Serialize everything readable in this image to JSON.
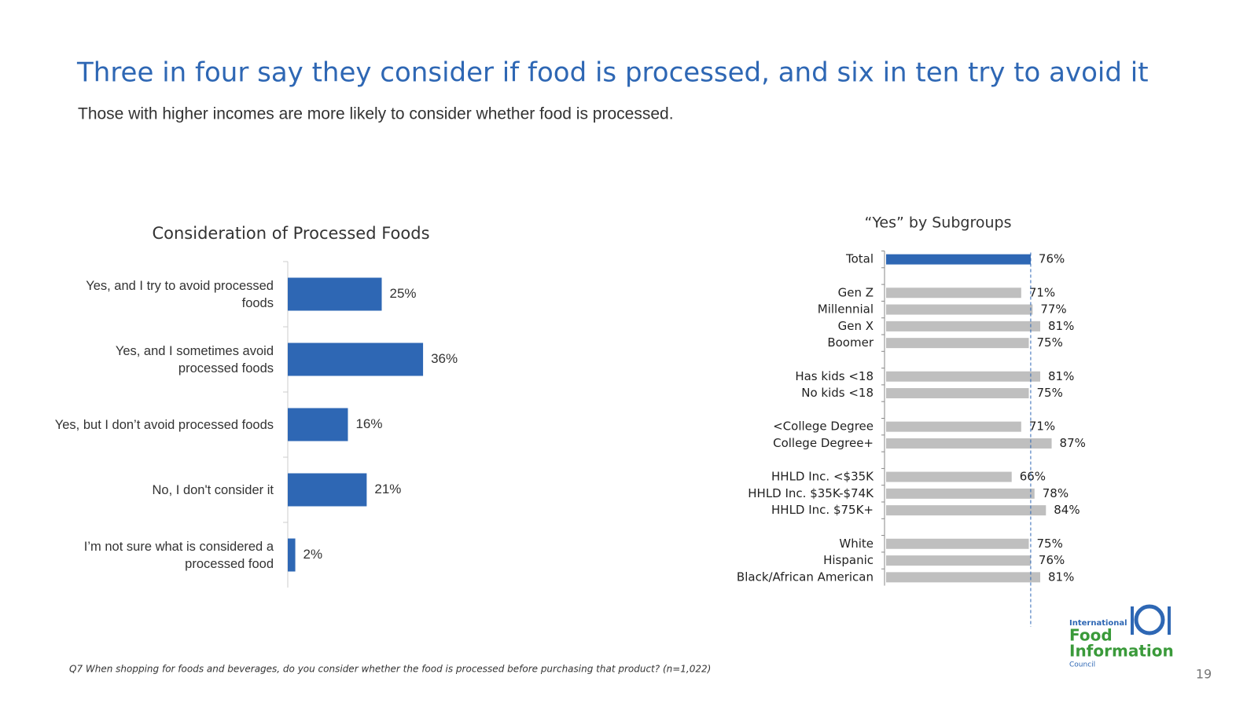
{
  "header": {
    "title": "Three in four say they consider if food is processed, and six in ten try to avoid it",
    "subtitle": "Those with higher incomes are more likely to consider whether food is processed."
  },
  "chart_data": [
    {
      "type": "bar",
      "orientation": "horizontal",
      "title": "Consideration of Processed Foods",
      "categories": [
        "Yes, and I try to avoid processed foods",
        "Yes, and I sometimes avoid processed foods",
        "Yes, but I don’t avoid processed foods",
        "No, I don't consider it",
        "I’m not sure what is considered a processed food"
      ],
      "values": [
        25,
        36,
        16,
        21,
        2
      ],
      "value_labels": [
        "25%",
        "36%",
        "16%",
        "21%",
        "2%"
      ],
      "color": "#2e67b4"
    },
    {
      "type": "bar",
      "orientation": "horizontal",
      "title": "“Yes” by Subgroups",
      "categories": [
        "Total",
        null,
        "Gen Z",
        "Millennial",
        "Gen X",
        "Boomer",
        null,
        "Has kids <18",
        "No kids <18",
        null,
        "<College Degree",
        "College Degree+",
        null,
        "HHLD Inc. <$35K",
        "HHLD Inc. $35K-$74K",
        "HHLD Inc. $75K+",
        null,
        "White",
        "Hispanic",
        "Black/African American"
      ],
      "values": [
        76,
        null,
        71,
        77,
        81,
        75,
        null,
        81,
        75,
        null,
        71,
        87,
        null,
        66,
        78,
        84,
        null,
        75,
        76,
        81
      ],
      "value_labels": [
        "76%",
        null,
        "71%",
        "77%",
        "81%",
        "75%",
        null,
        "81%",
        "75%",
        null,
        "71%",
        "87%",
        null,
        "66%",
        "78%",
        "84%",
        null,
        "75%",
        "76%",
        "81%"
      ],
      "colors": [
        "#2e67b4",
        null,
        "#bfbfbf",
        "#bfbfbf",
        "#bfbfbf",
        "#bfbfbf",
        null,
        "#bfbfbf",
        "#bfbfbf",
        null,
        "#bfbfbf",
        "#bfbfbf",
        null,
        "#bfbfbf",
        "#bfbfbf",
        "#bfbfbf",
        null,
        "#bfbfbf",
        "#bfbfbf",
        "#bfbfbf"
      ],
      "reference_line": true
    }
  ],
  "footnote": "Q7 When shopping for foods and beverages, do you consider whether the food is processed before purchasing that product? (n=1,022)",
  "logo": {
    "line1": "International",
    "line2": "Food",
    "line3": "Information",
    "line4": "Council"
  },
  "page_number": "19"
}
